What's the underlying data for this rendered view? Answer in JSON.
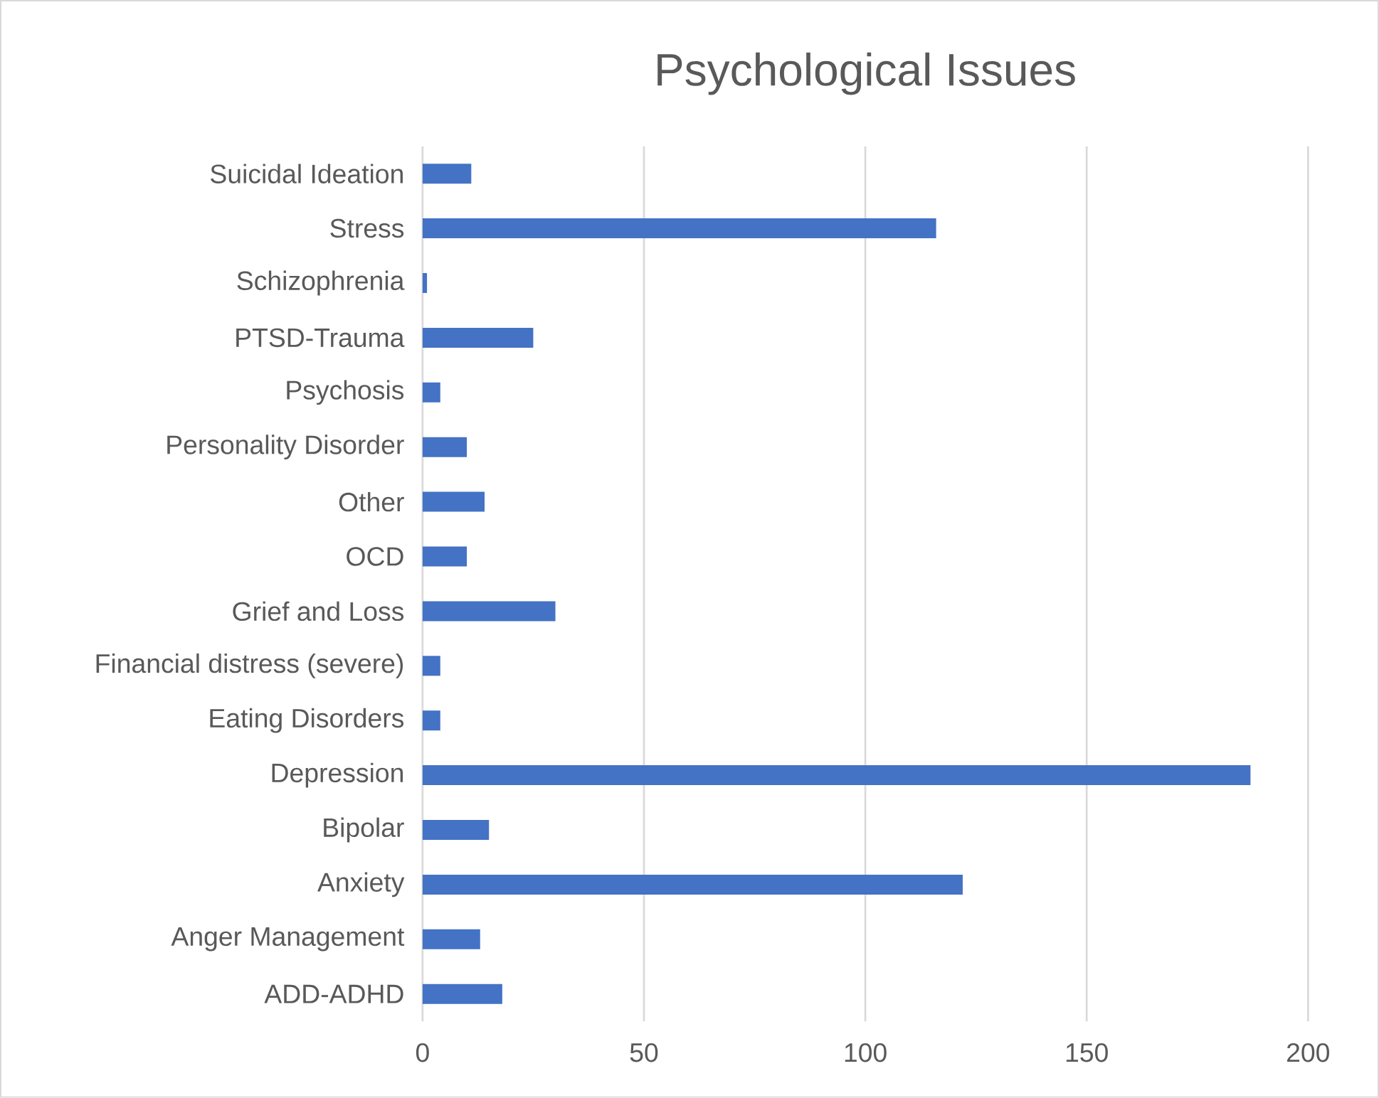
{
  "chart_data": {
    "type": "bar",
    "orientation": "horizontal",
    "title": "Psychological Issues",
    "categories": [
      "Suicidal Ideation",
      "Stress",
      "Schizophrenia",
      "PTSD-Trauma",
      "Psychosis",
      "Personality Disorder",
      "Other",
      "OCD",
      "Grief and Loss",
      "Financial distress (severe)",
      "Eating Disorders",
      "Depression",
      "Bipolar",
      "Anxiety",
      "Anger Management",
      "ADD-ADHD"
    ],
    "values": [
      11,
      116,
      1,
      25,
      4,
      10,
      14,
      10,
      30,
      4,
      4,
      187,
      15,
      122,
      13,
      18
    ],
    "color": "#4472c4",
    "xlim": [
      0,
      200
    ],
    "xticks": [
      0,
      50,
      100,
      150,
      200
    ],
    "grid": "x"
  }
}
